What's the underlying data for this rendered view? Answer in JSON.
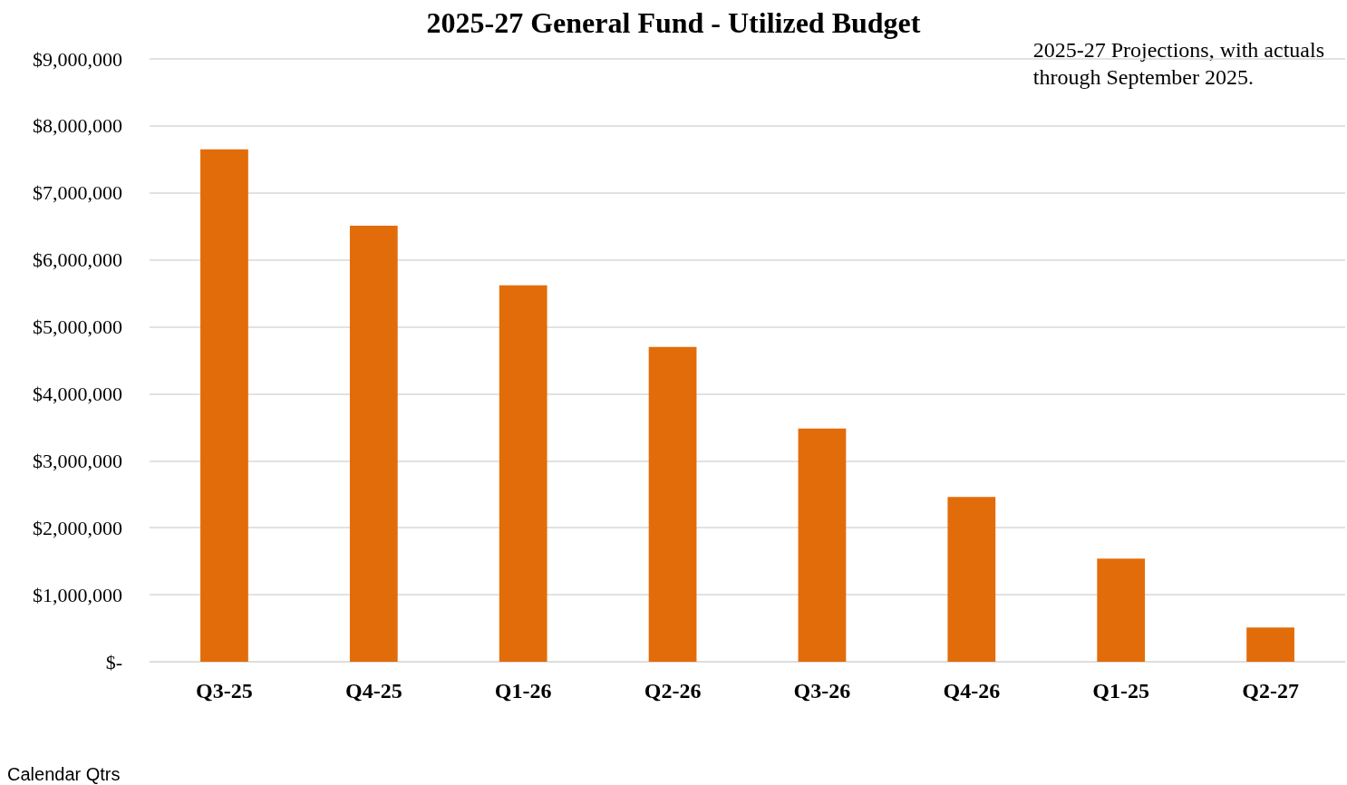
{
  "chart_data": {
    "type": "bar",
    "title": "2025-27 General Fund - Utilized Budget",
    "xlabel": "Calendar Qtrs",
    "annotations": [
      "2025-27 Projections, with actuals\nthrough September 2025."
    ],
    "categories": [
      "Q3-25",
      "Q4-25",
      "Q1-26",
      "Q2-26",
      "Q3-26",
      "Q4-26",
      "Q1-25",
      "Q2-27"
    ],
    "values": [
      7650000,
      6510000,
      5620000,
      4700000,
      3480000,
      2460000,
      1540000,
      510000
    ],
    "color": "#e36c0a",
    "ylim": [
      0,
      9000000
    ],
    "yticks": [
      {
        "value": 0,
        "label": "$-"
      },
      {
        "value": 1000000,
        "label": "$1,000,000"
      },
      {
        "value": 2000000,
        "label": "$2,000,000"
      },
      {
        "value": 3000000,
        "label": "$3,000,000"
      },
      {
        "value": 4000000,
        "label": "$4,000,000"
      },
      {
        "value": 5000000,
        "label": "$5,000,000"
      },
      {
        "value": 6000000,
        "label": "$6,000,000"
      },
      {
        "value": 7000000,
        "label": "$7,000,000"
      },
      {
        "value": 8000000,
        "label": "$8,000,000"
      },
      {
        "value": 9000000,
        "label": "$9,000,000"
      }
    ],
    "grid": "y"
  }
}
